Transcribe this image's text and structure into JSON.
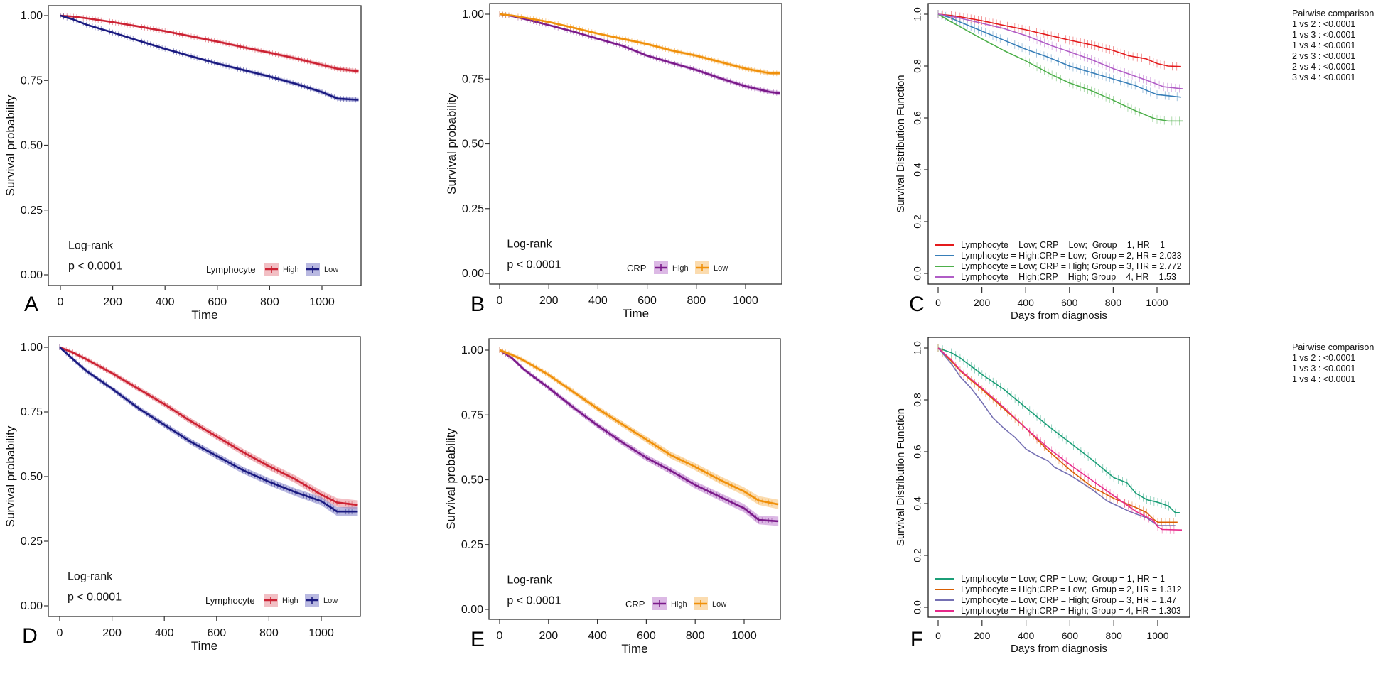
{
  "chart_data": [
    {
      "panel": "A",
      "type": "line",
      "style": "survminer",
      "xlabel": "Time",
      "ylabel": "Survival probability",
      "xlim": [
        0,
        1140
      ],
      "ylim": [
        0,
        1
      ],
      "xticks": [
        0,
        200,
        400,
        600,
        800,
        1000
      ],
      "yticks": [
        "0.00",
        "0.25",
        "0.50",
        "0.75",
        "1.00"
      ],
      "annotations": [
        "Log-rank",
        "p < 0.0001"
      ],
      "legend": {
        "title": "Lymphocyte",
        "position": "bottom-right"
      },
      "series": [
        {
          "name": "High",
          "color": "#cc2233",
          "band": "#e88a94",
          "x": [
            0,
            50,
            100,
            200,
            300,
            400,
            500,
            600,
            700,
            800,
            900,
            1000,
            1060,
            1140
          ],
          "y": [
            1.0,
            0.996,
            0.99,
            0.975,
            0.958,
            0.94,
            0.92,
            0.9,
            0.878,
            0.857,
            0.835,
            0.81,
            0.795,
            0.785
          ]
        },
        {
          "name": "Low",
          "color": "#1a1a80",
          "band": "#8080c8",
          "x": [
            0,
            50,
            100,
            200,
            300,
            400,
            500,
            600,
            700,
            800,
            900,
            1000,
            1060,
            1140
          ],
          "y": [
            1.0,
            0.985,
            0.965,
            0.935,
            0.903,
            0.872,
            0.843,
            0.815,
            0.79,
            0.765,
            0.737,
            0.705,
            0.68,
            0.675
          ]
        }
      ]
    },
    {
      "panel": "B",
      "type": "line",
      "style": "survminer",
      "xlabel": "Time",
      "ylabel": "Survival probability",
      "xlim": [
        0,
        1140
      ],
      "ylim": [
        0,
        1
      ],
      "xticks": [
        0,
        200,
        400,
        600,
        800,
        1000
      ],
      "yticks": [
        "0.00",
        "0.25",
        "0.50",
        "0.75",
        "1.00"
      ],
      "annotations": [
        "Log-rank",
        "p < 0.0001"
      ],
      "legend": {
        "title": "CRP",
        "position": "bottom-right"
      },
      "series": [
        {
          "name": "High",
          "color": "#7a1a8a",
          "band": "#c080d0",
          "x": [
            0,
            50,
            100,
            200,
            300,
            400,
            500,
            600,
            700,
            800,
            900,
            1000,
            1100,
            1140
          ],
          "y": [
            1.0,
            0.993,
            0.982,
            0.958,
            0.933,
            0.905,
            0.878,
            0.84,
            0.812,
            0.785,
            0.752,
            0.722,
            0.7,
            0.695
          ]
        },
        {
          "name": "Low",
          "color": "#f0900a",
          "band": "#f8c070",
          "x": [
            0,
            50,
            100,
            200,
            300,
            400,
            500,
            600,
            700,
            800,
            900,
            1000,
            1100,
            1140
          ],
          "y": [
            1.0,
            0.995,
            0.987,
            0.97,
            0.948,
            0.925,
            0.905,
            0.885,
            0.86,
            0.84,
            0.815,
            0.79,
            0.772,
            0.772
          ]
        }
      ]
    },
    {
      "panel": "C",
      "type": "line",
      "style": "base-r",
      "xlabel": "Days from diagnosis",
      "ylabel": "Survival Distribution Function",
      "xlim": [
        0,
        1140
      ],
      "ylim": [
        0,
        1
      ],
      "xticks": [
        0,
        200,
        400,
        600,
        800,
        1000
      ],
      "yticks": [
        "0.0",
        "0.2",
        "0.4",
        "0.6",
        "0.8",
        "1.0"
      ],
      "legend": {
        "position": "bottom-left"
      },
      "pairwise": {
        "title": "Pairwise comparison",
        "rows": [
          "1 vs 2 : <0.0001",
          "1 vs 3 : <0.0001",
          "1 vs 4 : <0.0001",
          "2 vs 3 : <0.0001",
          "2 vs 4 : <0.0001",
          "3 vs 4 : <0.0001"
        ]
      },
      "series": [
        {
          "name": "Lymphocyte = Low; CRP = Low;  Group = 1, HR = 1",
          "color": "#e41a1c",
          "x": [
            0,
            60,
            100,
            200,
            300,
            400,
            500,
            600,
            700,
            800,
            870,
            950,
            1000,
            1050,
            1110
          ],
          "y": [
            1.0,
            0.995,
            0.99,
            0.975,
            0.957,
            0.94,
            0.92,
            0.9,
            0.882,
            0.86,
            0.84,
            0.828,
            0.81,
            0.8,
            0.798
          ]
        },
        {
          "name": "Lymphocyte = High;CRP = Low;  Group = 2, HR = 2.033",
          "color": "#377eb8",
          "x": [
            0,
            50,
            100,
            200,
            300,
            400,
            500,
            600,
            700,
            800,
            900,
            970,
            1000,
            1110
          ],
          "y": [
            1.0,
            0.988,
            0.97,
            0.935,
            0.9,
            0.865,
            0.835,
            0.8,
            0.775,
            0.75,
            0.725,
            0.7,
            0.69,
            0.68
          ]
        },
        {
          "name": "Lymphocyte = Low; CRP = High; Group = 3, HR = 2.772",
          "color": "#4daf4a",
          "x": [
            0,
            50,
            100,
            200,
            300,
            400,
            520,
            600,
            700,
            800,
            900,
            980,
            1000,
            1050,
            1120
          ],
          "y": [
            1.0,
            0.975,
            0.952,
            0.905,
            0.86,
            0.82,
            0.766,
            0.735,
            0.705,
            0.668,
            0.628,
            0.6,
            0.595,
            0.588,
            0.588
          ]
        },
        {
          "name": "Lymphocyte = High;CRP = High; Group = 4, HR = 1.53",
          "color": "#b05cc6",
          "x": [
            0,
            100,
            200,
            300,
            400,
            520,
            600,
            700,
            800,
            870,
            970,
            1030,
            1120
          ],
          "y": [
            1.0,
            0.985,
            0.965,
            0.945,
            0.918,
            0.878,
            0.855,
            0.825,
            0.79,
            0.77,
            0.74,
            0.72,
            0.712
          ]
        }
      ]
    },
    {
      "panel": "D",
      "type": "line",
      "style": "survminer",
      "xlabel": "Time",
      "ylabel": "Survival probability",
      "xlim": [
        0,
        1140
      ],
      "ylim": [
        0,
        1
      ],
      "xticks": [
        0,
        200,
        400,
        600,
        800,
        1000
      ],
      "yticks": [
        "0.00",
        "0.25",
        "0.50",
        "0.75",
        "1.00"
      ],
      "annotations": [
        "Log-rank",
        "p < 0.0001"
      ],
      "legend": {
        "title": "Lymphocyte",
        "position": "bottom-right"
      },
      "series": [
        {
          "name": "High",
          "color": "#cc2233",
          "band": "#e88a94",
          "x": [
            0,
            50,
            100,
            200,
            300,
            400,
            500,
            600,
            700,
            800,
            900,
            1000,
            1060,
            1140
          ],
          "y": [
            1.0,
            0.98,
            0.955,
            0.9,
            0.84,
            0.78,
            0.715,
            0.655,
            0.595,
            0.54,
            0.49,
            0.43,
            0.4,
            0.39
          ]
        },
        {
          "name": "Low",
          "color": "#1a1a80",
          "band": "#8080c8",
          "x": [
            0,
            50,
            100,
            200,
            300,
            400,
            500,
            600,
            700,
            800,
            900,
            1000,
            1060,
            1140
          ],
          "y": [
            1.0,
            0.955,
            0.91,
            0.84,
            0.765,
            0.7,
            0.635,
            0.58,
            0.525,
            0.48,
            0.44,
            0.405,
            0.365,
            0.365
          ]
        }
      ]
    },
    {
      "panel": "E",
      "type": "line",
      "style": "survminer",
      "xlabel": "Time",
      "ylabel": "Survival probability",
      "xlim": [
        0,
        1140
      ],
      "ylim": [
        0,
        1
      ],
      "xticks": [
        0,
        200,
        400,
        600,
        800,
        1000
      ],
      "yticks": [
        "0.00",
        "0.25",
        "0.50",
        "0.75",
        "1.00"
      ],
      "annotations": [
        "Log-rank",
        "p < 0.0001"
      ],
      "legend": {
        "title": "CRP",
        "position": "bottom-right"
      },
      "series": [
        {
          "name": "High",
          "color": "#7a1a8a",
          "band": "#c080d0",
          "x": [
            0,
            50,
            100,
            200,
            300,
            400,
            500,
            600,
            700,
            800,
            900,
            1000,
            1060,
            1140
          ],
          "y": [
            1.0,
            0.97,
            0.925,
            0.855,
            0.78,
            0.71,
            0.645,
            0.585,
            0.535,
            0.48,
            0.435,
            0.39,
            0.345,
            0.34
          ]
        },
        {
          "name": "Low",
          "color": "#f0900a",
          "band": "#f8c070",
          "x": [
            0,
            50,
            100,
            200,
            300,
            400,
            500,
            600,
            700,
            800,
            900,
            1000,
            1060,
            1140
          ],
          "y": [
            1.0,
            0.982,
            0.96,
            0.905,
            0.84,
            0.775,
            0.715,
            0.655,
            0.595,
            0.55,
            0.5,
            0.455,
            0.42,
            0.405
          ]
        }
      ]
    },
    {
      "panel": "F",
      "type": "line",
      "style": "base-r",
      "xlabel": "Days from diagnosis",
      "ylabel": "Survival Distribution Function",
      "xlim": [
        0,
        1140
      ],
      "ylim": [
        0,
        1
      ],
      "xticks": [
        0,
        200,
        400,
        600,
        800,
        1000
      ],
      "yticks": [
        "0.0",
        "0.2",
        "0.4",
        "0.6",
        "0.8",
        "1.0"
      ],
      "legend": {
        "position": "bottom-left"
      },
      "pairwise": {
        "title": "Pairwise comparison",
        "rows": [
          "1 vs 2 : <0.0001",
          "1 vs 3 : <0.0001",
          "1 vs 4 : <0.0001"
        ]
      },
      "series": [
        {
          "name": "Lymphocyte = Low; CRP = Low;  Group = 1, HR = 1",
          "color": "#1b9e77",
          "x": [
            0,
            60,
            100,
            200,
            300,
            400,
            500,
            600,
            700,
            800,
            860,
            900,
            950,
            1000,
            1050,
            1080,
            1100
          ],
          "y": [
            1.0,
            0.982,
            0.962,
            0.898,
            0.84,
            0.77,
            0.7,
            0.635,
            0.57,
            0.5,
            0.48,
            0.44,
            0.415,
            0.405,
            0.39,
            0.365,
            0.365
          ]
        },
        {
          "name": "Lymphocyte = High;CRP = Low;  Group = 2, HR = 1.312",
          "color": "#d95f02",
          "x": [
            0,
            60,
            100,
            200,
            300,
            400,
            500,
            600,
            700,
            800,
            900,
            950,
            980,
            1000,
            1090
          ],
          "y": [
            1.0,
            0.95,
            0.912,
            0.84,
            0.765,
            0.69,
            0.605,
            0.53,
            0.465,
            0.42,
            0.385,
            0.365,
            0.34,
            0.328,
            0.328
          ]
        },
        {
          "name": "Lymphocyte = Low; CRP = High; Group = 3, HR = 1.47",
          "color": "#7570b3",
          "x": [
            0,
            30,
            60,
            100,
            150,
            200,
            250,
            300,
            350,
            400,
            450,
            500,
            530,
            600,
            700,
            770,
            820,
            870,
            950,
            1000,
            1080
          ],
          "y": [
            1.0,
            0.97,
            0.94,
            0.89,
            0.845,
            0.79,
            0.73,
            0.69,
            0.655,
            0.61,
            0.585,
            0.565,
            0.54,
            0.51,
            0.455,
            0.41,
            0.39,
            0.37,
            0.345,
            0.315,
            0.315
          ]
        },
        {
          "name": "Lymphocyte = High;CRP = High; Group = 4, HR = 1.303",
          "color": "#e7298a",
          "x": [
            0,
            60,
            100,
            200,
            300,
            400,
            500,
            600,
            700,
            800,
            900,
            980,
            1000,
            1020,
            1110
          ],
          "y": [
            1.0,
            0.955,
            0.915,
            0.845,
            0.77,
            0.69,
            0.615,
            0.55,
            0.49,
            0.43,
            0.37,
            0.335,
            0.31,
            0.3,
            0.298
          ]
        }
      ]
    }
  ]
}
